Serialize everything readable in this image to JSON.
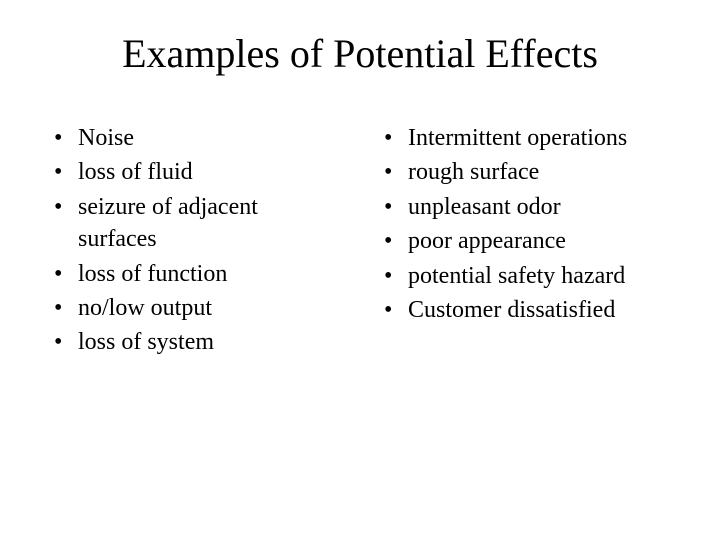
{
  "title": "Examples of Potential Effects",
  "left_column": [
    "Noise",
    "loss of fluid",
    "seizure of adjacent surfaces",
    "loss of function",
    "no/low output",
    "loss of system"
  ],
  "right_column": [
    "Intermittent operations",
    "rough surface",
    "unpleasant odor",
    "poor appearance",
    "potential safety hazard",
    "Customer dissatisfied"
  ],
  "colors": {
    "background": "#ffffff",
    "text": "#000000"
  },
  "typography": {
    "title_fontsize": 40,
    "item_fontsize": 24,
    "font_family": "Times New Roman"
  }
}
